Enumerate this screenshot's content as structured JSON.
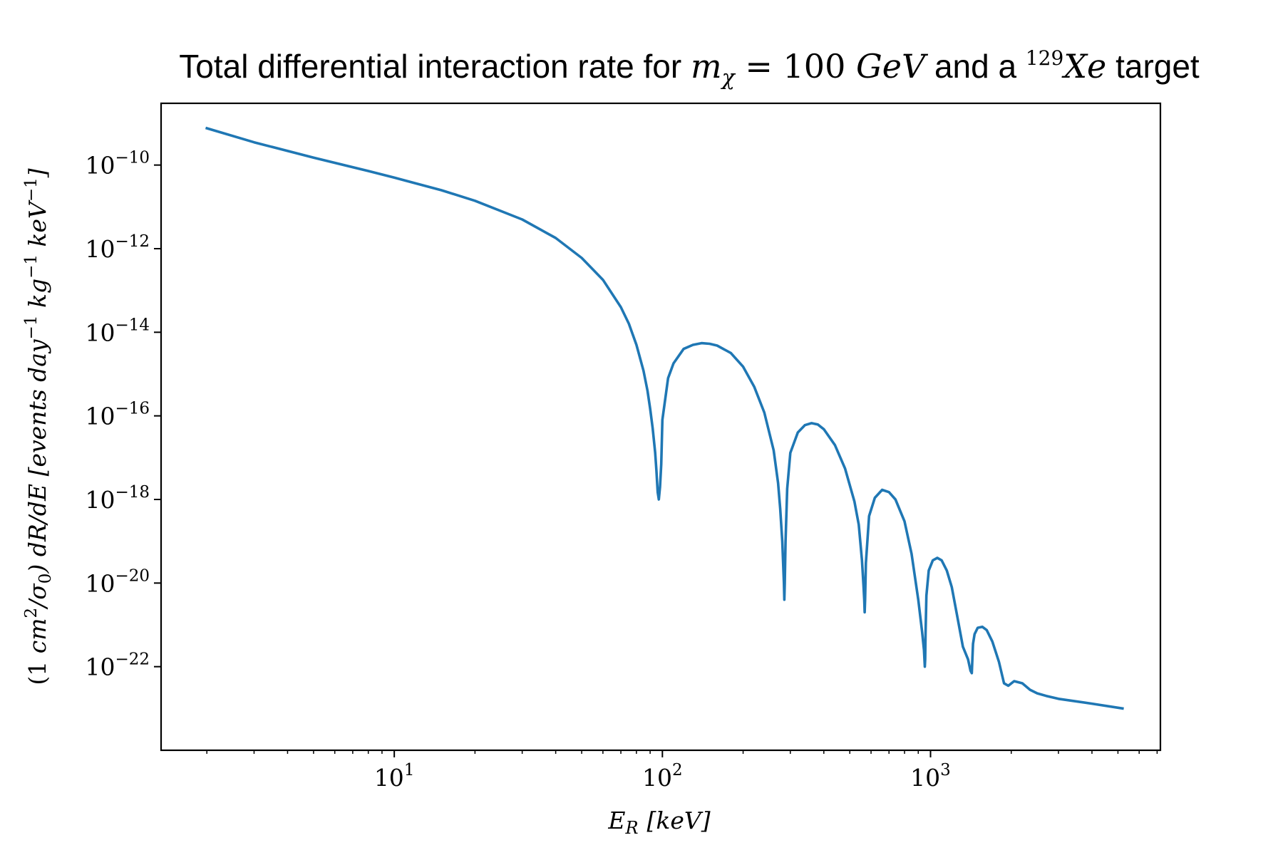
{
  "chart_data": {
    "type": "line",
    "title": {
      "prefix": "Total differential interaction rate for ",
      "mass_symbol": "m",
      "mass_subscript": "χ",
      "mass_eq": " = 100 ",
      "mass_unit": "GeV",
      "middle": " and a ",
      "isotope_mass": "129",
      "element": "Xe",
      "suffix": " target"
    },
    "xlabel": {
      "symbol": "E",
      "subscript": "R",
      "unit": "[keV]"
    },
    "ylabel": {
      "prefix": "(1 ",
      "cm": "cm",
      "cm_exp": "2",
      "slash": "/σ",
      "sigma_sub": "0",
      "middle": ") dR/dE [events day",
      "exp1": "−1",
      "kg": " kg",
      "exp2": "−1",
      "kev": " keV",
      "exp3": "−1",
      "end": "]"
    },
    "xscale": "log",
    "yscale": "log",
    "xlim": [
      1.35,
      7200
    ],
    "ylim": [
      1e-24,
      3e-09
    ],
    "x_ticks": [
      {
        "value": 10,
        "base": "10",
        "exp": "1"
      },
      {
        "value": 100,
        "base": "10",
        "exp": "2"
      },
      {
        "value": 1000,
        "base": "10",
        "exp": "3"
      }
    ],
    "y_ticks": [
      {
        "value": 1e-10,
        "base": "10",
        "exp": "−10"
      },
      {
        "value": 1e-12,
        "base": "10",
        "exp": "−12"
      },
      {
        "value": 1e-14,
        "base": "10",
        "exp": "−14"
      },
      {
        "value": 1e-16,
        "base": "10",
        "exp": "−16"
      },
      {
        "value": 1e-18,
        "base": "10",
        "exp": "−18"
      },
      {
        "value": 1e-20,
        "base": "10",
        "exp": "−20"
      },
      {
        "value": 1e-22,
        "base": "10",
        "exp": "−22"
      }
    ],
    "grid": false,
    "series": [
      {
        "color": "#1f77b4",
        "x": [
          2,
          3,
          5,
          8,
          10,
          15,
          20,
          30,
          40,
          50,
          60,
          70,
          75,
          80,
          85,
          88,
          90,
          92,
          94,
          95,
          96,
          97,
          98,
          99,
          100,
          105,
          110,
          120,
          130,
          140,
          150,
          160,
          180,
          200,
          220,
          240,
          260,
          270,
          275,
          280,
          284,
          285,
          286,
          288,
          292,
          300,
          320,
          340,
          360,
          380,
          400,
          440,
          480,
          520,
          540,
          555,
          562,
          566,
          568,
          570,
          574,
          590,
          620,
          660,
          700,
          740,
          800,
          850,
          900,
          930,
          945,
          952,
          955,
          958,
          965,
          985,
          1020,
          1060,
          1100,
          1150,
          1200,
          1260,
          1320,
          1380,
          1410,
          1425,
          1432,
          1440,
          1460,
          1500,
          1560,
          1620,
          1700,
          1800,
          1880,
          1950,
          2050,
          2200,
          2350,
          2500,
          2700,
          3000,
          4000,
          5200
        ],
        "y": [
          7.6e-10,
          3.5e-10,
          1.5e-10,
          7.2e-11,
          5e-11,
          2.5e-11,
          1.4e-11,
          5e-12,
          1.8e-12,
          6e-13,
          1.8e-13,
          4e-14,
          1.6e-14,
          5e-15,
          1.2e-15,
          4e-16,
          1.5e-16,
          5e-17,
          1.3e-17,
          5e-18,
          1.5e-18,
          1e-18,
          2e-18,
          7e-18,
          8e-17,
          8e-16,
          1.8e-15,
          4e-15,
          5e-15,
          5.5e-15,
          5.3e-15,
          4.8e-15,
          3.2e-15,
          1.5e-15,
          5e-16,
          1.2e-16,
          1.5e-17,
          2.5e-18,
          6e-19,
          1e-19,
          1e-20,
          4e-21,
          1e-20,
          1e-19,
          1.8e-18,
          1.3e-17,
          4e-17,
          6e-17,
          6.7e-17,
          6.2e-17,
          4.8e-17,
          2e-17,
          5.5e-18,
          9e-19,
          2.5e-19,
          3.5e-20,
          9e-21,
          4e-21,
          2e-21,
          4e-21,
          3e-20,
          4e-19,
          1.1e-18,
          1.7e-18,
          1.5e-18,
          1e-18,
          3e-19,
          5e-20,
          4e-21,
          7e-22,
          2.5e-22,
          1e-22,
          1.5e-22,
          6e-22,
          5e-21,
          2e-20,
          3.5e-20,
          4e-20,
          3.5e-20,
          2e-20,
          8e-21,
          1.5e-21,
          3e-22,
          1.5e-22,
          8e-23,
          7e-23,
          1.5e-22,
          3.5e-22,
          6e-22,
          8.5e-22,
          9e-22,
          7.5e-22,
          4e-22,
          1.3e-22,
          4e-23,
          3.5e-23,
          4.5e-23,
          4e-23,
          2.8e-23,
          2.3e-23,
          2e-23,
          1.7e-23,
          1.3e-23,
          1e-23
        ]
      }
    ]
  }
}
